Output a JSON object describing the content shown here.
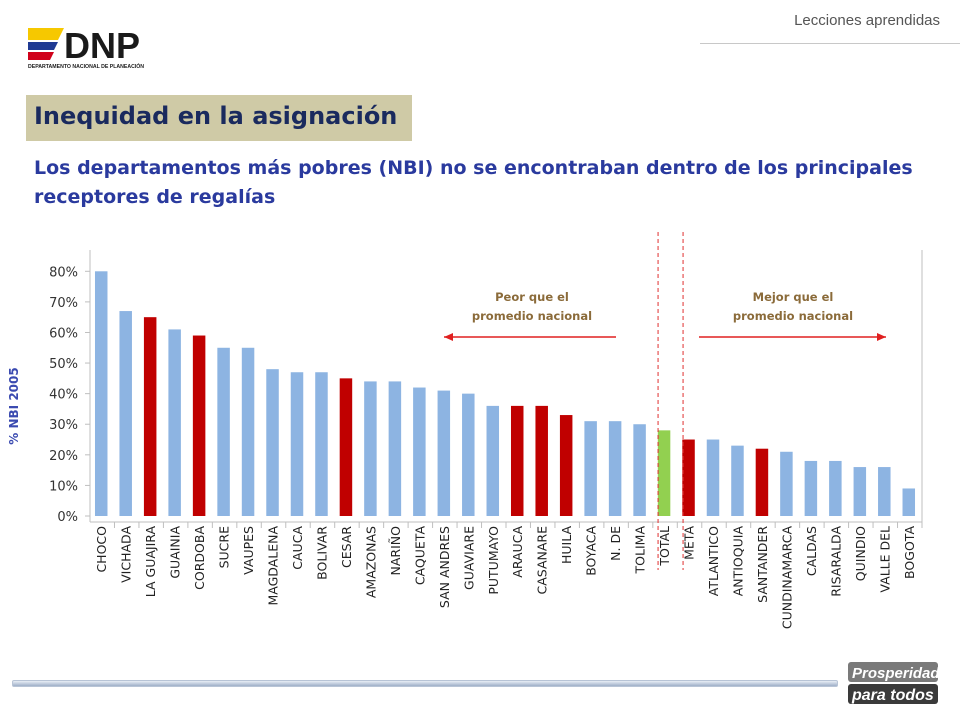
{
  "header": {
    "logo_text": "DNP",
    "logo_subtext": "DEPARTAMENTO NACIONAL DE PLANEACIÓN",
    "section": "Lecciones aprendidas"
  },
  "slide": {
    "title": "Inequidad en la asignación",
    "subtitle": "Los departamentos más pobres (NBI) no se encontraban dentro de los principales receptores de regalías"
  },
  "colors": {
    "bar_default": "#8db4e2",
    "bar_highlight": "#c00000",
    "bar_total": "#92d050",
    "annotation_text": "#8b6b3a",
    "arrow": "#e02020"
  },
  "chart_data": {
    "type": "bar",
    "ylabel": "% NBI 2005",
    "ylim": [
      0,
      0.85
    ],
    "yticks": [
      0,
      0.1,
      0.2,
      0.3,
      0.4,
      0.5,
      0.6,
      0.7,
      0.8
    ],
    "ytick_labels": [
      "0%",
      "10%",
      "20%",
      "30%",
      "40%",
      "50%",
      "60%",
      "70%",
      "80%"
    ],
    "grid": false,
    "categories": [
      "CHOCO",
      "VICHADA",
      "LA GUAJIRA",
      "GUAINIA",
      "CORDOBA",
      "SUCRE",
      "VAUPES",
      "MAGDALENA",
      "CAUCA",
      "BOLIVAR",
      "CESAR",
      "AMAZONAS",
      "NARIÑO",
      "CAQUETA",
      "SAN ANDRES",
      "GUAVIARE",
      "PUTUMAYO",
      "ARAUCA",
      "CASANARE",
      "HUILA",
      "BOYACA",
      "N. DE",
      "TOLIMA",
      "TOTAL",
      "META",
      "ATLANTICO",
      "ANTIOQUIA",
      "SANTANDER",
      "CUNDINAMARCA",
      "CALDAS",
      "RISARALDA",
      "QUINDIO",
      "VALLE DEL",
      "BOGOTA"
    ],
    "values": [
      0.8,
      0.67,
      0.65,
      0.61,
      0.59,
      0.55,
      0.55,
      0.48,
      0.47,
      0.47,
      0.45,
      0.44,
      0.44,
      0.42,
      0.41,
      0.4,
      0.36,
      0.36,
      0.36,
      0.33,
      0.31,
      0.31,
      0.3,
      0.28,
      0.25,
      0.25,
      0.23,
      0.22,
      0.21,
      0.18,
      0.18,
      0.16,
      0.16,
      0.09
    ],
    "bar_groups": [
      "default",
      "default",
      "highlight",
      "default",
      "highlight",
      "default",
      "default",
      "default",
      "default",
      "default",
      "highlight",
      "default",
      "default",
      "default",
      "default",
      "default",
      "default",
      "highlight",
      "highlight",
      "highlight",
      "default",
      "default",
      "default",
      "total",
      "highlight",
      "default",
      "default",
      "highlight",
      "default",
      "default",
      "default",
      "default",
      "default",
      "default"
    ],
    "annotations": [
      {
        "text": "Peor que el promedio nacional",
        "arrow": "left"
      },
      {
        "text": "Mejor que el promedio nacional",
        "arrow": "right"
      }
    ]
  },
  "footer": {
    "logo_line1": "Prosperidad",
    "logo_line2": "para todos"
  }
}
